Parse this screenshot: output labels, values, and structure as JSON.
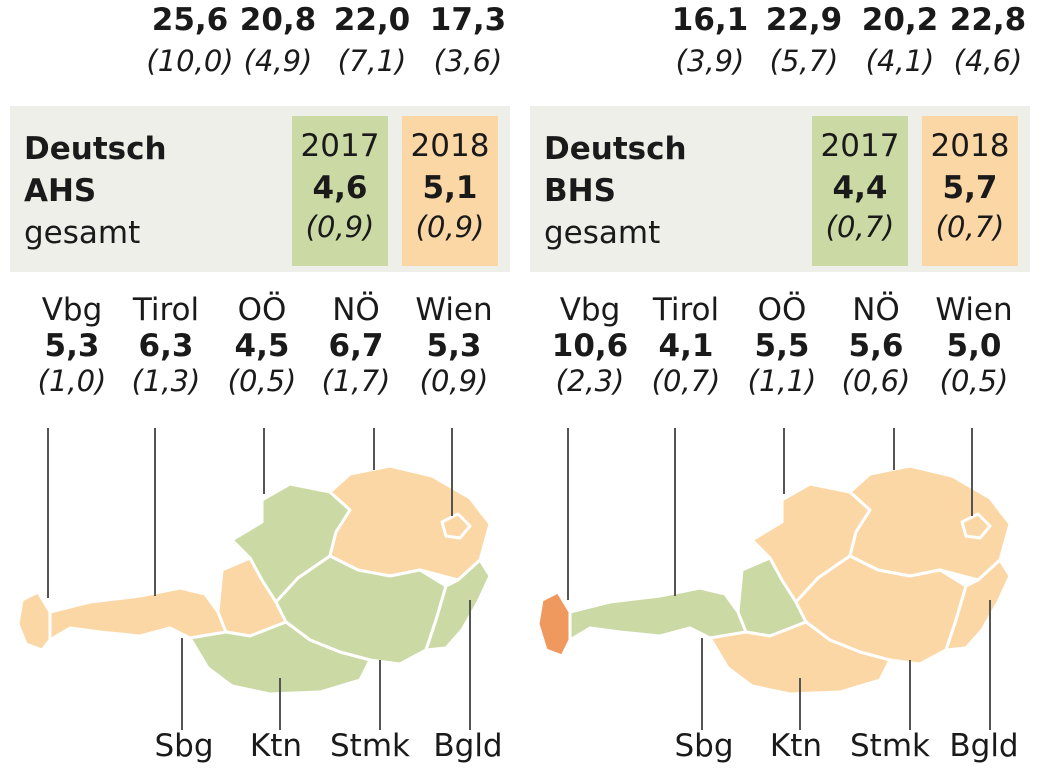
{
  "colors": {
    "green": "#cbd9a5",
    "orange": "#fbd7a6",
    "highlight": "#f0995e",
    "box_bg": "#eeefe8",
    "line": "#555555"
  },
  "left": {
    "top_values": [
      {
        "value": "25,6",
        "sub": "(10,0)"
      },
      {
        "value": "20,8",
        "sub": "(4,9)"
      },
      {
        "value": "22,0",
        "sub": "(7,1)"
      },
      {
        "value": "17,3",
        "sub": "(3,6)"
      }
    ],
    "title_line1": "Deutsch",
    "title_line2": "AHS",
    "title_line3": "gesamt",
    "y2017": {
      "year": "2017",
      "value": "4,6",
      "sub": "(0,9)"
    },
    "y2018": {
      "year": "2018",
      "value": "5,1",
      "sub": "(0,9)"
    },
    "regions_top": [
      {
        "name": "Vbg",
        "value": "5,3",
        "sub": "(1,0)"
      },
      {
        "name": "Tirol",
        "value": "6,3",
        "sub": "(1,3)"
      },
      {
        "name": "OÖ",
        "value": "4,5",
        "sub": "(0,5)"
      },
      {
        "name": "NÖ",
        "value": "6,7",
        "sub": "(1,7)"
      },
      {
        "name": "Wien",
        "value": "5,3",
        "sub": "(0,9)"
      }
    ],
    "regions_bottom": [
      {
        "name": "Sbg"
      },
      {
        "name": "Ktn"
      },
      {
        "name": "Stmk"
      },
      {
        "name": "Bgld"
      }
    ],
    "map_fill": {
      "Vbg": "orange",
      "Tirol": "orange",
      "Sbg": "orange",
      "OÖ": "green",
      "NÖ": "orange",
      "Wien": "orange",
      "Stmk": "green",
      "Ktn": "green",
      "Bgld": "green"
    }
  },
  "right": {
    "top_values": [
      {
        "value": "16,1",
        "sub": "(3,9)"
      },
      {
        "value": "22,9",
        "sub": "(5,7)"
      },
      {
        "value": "20,2",
        "sub": "(4,1)"
      },
      {
        "value": "22,8",
        "sub": "(4,6)"
      }
    ],
    "title_line1": "Deutsch",
    "title_line2": "BHS",
    "title_line3": "gesamt",
    "y2017": {
      "year": "2017",
      "value": "4,4",
      "sub": "(0,7)"
    },
    "y2018": {
      "year": "2018",
      "value": "5,7",
      "sub": "(0,7)"
    },
    "regions_top": [
      {
        "name": "Vbg",
        "value": "10,6",
        "sub": "(2,3)"
      },
      {
        "name": "Tirol",
        "value": "4,1",
        "sub": "(0,7)"
      },
      {
        "name": "OÖ",
        "value": "5,5",
        "sub": "(1,1)"
      },
      {
        "name": "NÖ",
        "value": "5,6",
        "sub": "(0,6)"
      },
      {
        "name": "Wien",
        "value": "5,0",
        "sub": "(0,5)"
      }
    ],
    "regions_bottom": [
      {
        "name": "Sbg"
      },
      {
        "name": "Ktn"
      },
      {
        "name": "Stmk"
      },
      {
        "name": "Bgld"
      }
    ],
    "map_fill": {
      "Vbg": "highlight",
      "Tirol": "green",
      "Sbg": "green",
      "OÖ": "orange",
      "NÖ": "orange",
      "Wien": "orange",
      "Stmk": "orange",
      "Ktn": "orange",
      "Bgld": "orange"
    }
  }
}
